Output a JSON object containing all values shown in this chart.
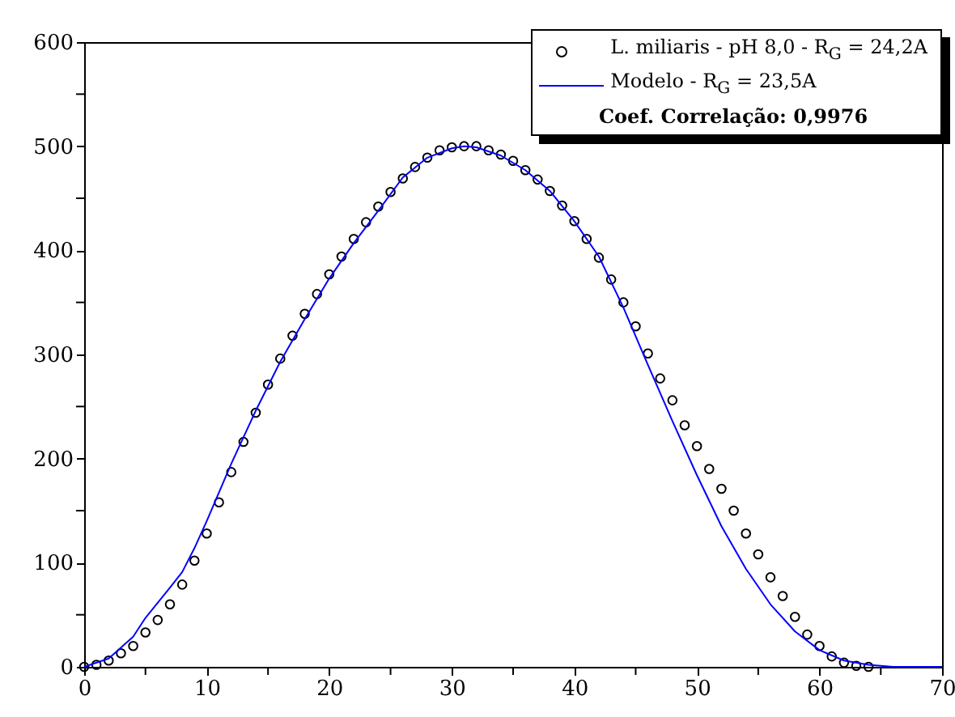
{
  "chart_data": {
    "type": "scatter",
    "xlim": [
      0,
      70
    ],
    "ylim": [
      0,
      600
    ],
    "xticks": [
      0,
      {
        "value": 5,
        "label": null
      },
      10,
      {
        "value": 15,
        "label": null
      },
      20,
      {
        "value": 25,
        "label": null
      },
      30,
      {
        "value": 35,
        "label": null
      },
      40,
      {
        "value": 45,
        "label": null
      },
      50,
      {
        "value": 55,
        "label": null
      },
      60,
      {
        "value": 65,
        "label": null
      },
      70
    ],
    "yticks": [
      0,
      {
        "value": 50,
        "label": null
      },
      100,
      {
        "value": 150,
        "label": null
      },
      200,
      {
        "value": 250,
        "label": null
      },
      300,
      {
        "value": 350,
        "label": null
      },
      400,
      {
        "value": 450,
        "label": null
      },
      500,
      {
        "value": 550,
        "label": null
      },
      600
    ],
    "grid": false,
    "legend": "top right",
    "annotations": [
      "Coef. Correlação: 0,9976"
    ],
    "series": [
      {
        "name": "L. miliaris - pH 8,0 - R$_{G}$ = 24,2A",
        "marker": "circle",
        "color": "#000000",
        "x": [
          0,
          1,
          2,
          3,
          4,
          5,
          6,
          7,
          8,
          9,
          10,
          11,
          12,
          13,
          14,
          15,
          16,
          17,
          18,
          19,
          20,
          21,
          22,
          23,
          24,
          25,
          26,
          27,
          28,
          29,
          30,
          31,
          32,
          33,
          34,
          35,
          36,
          37,
          38,
          39,
          40,
          41,
          42,
          43,
          44,
          45,
          46,
          47,
          48,
          49,
          50,
          51,
          52,
          53,
          54,
          55,
          56,
          57,
          58,
          59,
          60,
          61,
          62,
          63,
          64
        ],
        "values": [
          0,
          2,
          6,
          13,
          20,
          33,
          45,
          60,
          79,
          102,
          128,
          158,
          187,
          216,
          244,
          271,
          296,
          318,
          339,
          358,
          377,
          394,
          411,
          427,
          442,
          456,
          469,
          480,
          489,
          496,
          499,
          500,
          500,
          496,
          492,
          486,
          477,
          468,
          457,
          443,
          428,
          411,
          393,
          372,
          350,
          327,
          301,
          277,
          256,
          232,
          212,
          190,
          171,
          150,
          128,
          108,
          86,
          68,
          48,
          31,
          20,
          10,
          4,
          1,
          0
        ]
      },
      {
        "name": "Modelo  - R$_{G}$ = 23,5A",
        "type": "line",
        "line_style": "solid",
        "color": "#0000ff",
        "x": [
          0,
          2,
          4,
          5,
          7,
          8,
          9,
          10,
          12,
          14,
          16,
          18,
          20,
          22,
          24,
          26,
          28,
          30,
          31,
          32,
          34,
          36,
          38,
          40,
          42,
          44,
          46,
          48,
          50,
          52,
          54,
          56,
          58,
          60,
          62,
          64,
          66,
          70
        ],
        "values": [
          0,
          8,
          29,
          47,
          76,
          91,
          114,
          140,
          195,
          246,
          293,
          334,
          373,
          407,
          438,
          470,
          489,
          498,
          500,
          499,
          491,
          477,
          457,
          428,
          394,
          345,
          290,
          236,
          184,
          135,
          94,
          60,
          34,
          16,
          6,
          2,
          0,
          0
        ]
      }
    ]
  }
}
